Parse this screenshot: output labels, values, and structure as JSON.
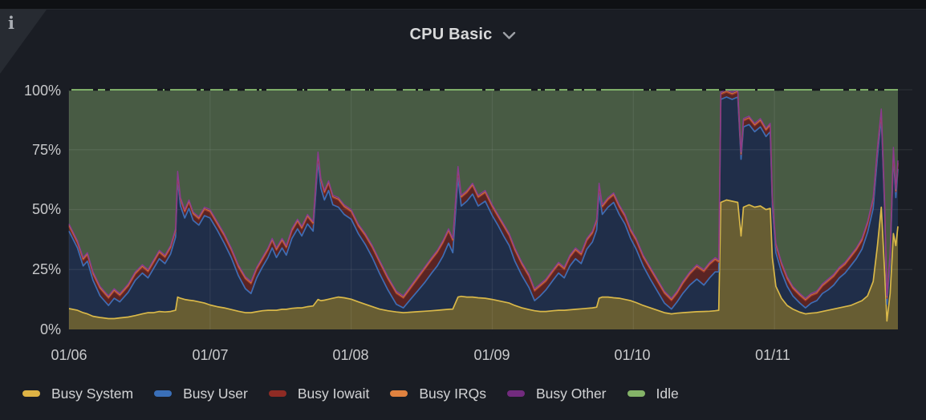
{
  "panel": {
    "title": "CPU Basic"
  },
  "icons": {
    "info_glyph": "i"
  },
  "y_axis": {
    "ticks": [
      "100%",
      "75%",
      "50%",
      "25%",
      "0%"
    ]
  },
  "x_axis": {
    "ticks": [
      "01/06",
      "01/07",
      "01/08",
      "01/09",
      "01/10",
      "01/11"
    ]
  },
  "legend": [
    {
      "label": "Busy System",
      "color": "#deb345"
    },
    {
      "label": "Busy User",
      "color": "#3a6fb8"
    },
    {
      "label": "Busy Iowait",
      "color": "#8f2b24"
    },
    {
      "label": "Busy IRQs",
      "color": "#e0823f"
    },
    {
      "label": "Busy Other",
      "color": "#722b7e"
    },
    {
      "label": "Idle",
      "color": "#84b368"
    }
  ],
  "chart_data": {
    "type": "area",
    "stacked": true,
    "title": "CPU Basic",
    "unit": "percent",
    "ylim": [
      0,
      100
    ],
    "xlim": [
      0,
      5.875
    ],
    "x_unit": "days since 01/06 00:00",
    "x_tick_positions": [
      0,
      1,
      2,
      3,
      4,
      5
    ],
    "grid": true,
    "legend_position": "bottom",
    "x": [
      0,
      0.06,
      0.1,
      0.13,
      0.17,
      0.22,
      0.28,
      0.32,
      0.36,
      0.42,
      0.47,
      0.52,
      0.56,
      0.6,
      0.64,
      0.68,
      0.72,
      0.755,
      0.77,
      0.79,
      0.82,
      0.85,
      0.88,
      0.92,
      0.96,
      1,
      1.05,
      1.1,
      1.15,
      1.2,
      1.25,
      1.29,
      1.33,
      1.37,
      1.41,
      1.44,
      1.47,
      1.51,
      1.54,
      1.58,
      1.62,
      1.65,
      1.69,
      1.73,
      1.765,
      1.785,
      1.81,
      1.84,
      1.87,
      1.91,
      1.95,
      2,
      2.05,
      2.1,
      2.15,
      2.2,
      2.26,
      2.32,
      2.37,
      2.42,
      2.47,
      2.52,
      2.57,
      2.61,
      2.65,
      2.69,
      2.72,
      2.757,
      2.78,
      2.82,
      2.86,
      2.9,
      2.95,
      3,
      3.04,
      3.08,
      3.12,
      3.16,
      3.21,
      3.26,
      3.3,
      3.34,
      3.38,
      3.43,
      3.47,
      3.51,
      3.55,
      3.59,
      3.63,
      3.67,
      3.71,
      3.74,
      3.757,
      3.78,
      3.82,
      3.86,
      3.9,
      3.94,
      3.98,
      4.02,
      4.07,
      4.12,
      4.17,
      4.22,
      4.27,
      4.31,
      4.35,
      4.4,
      4.45,
      4.5,
      4.54,
      4.58,
      4.605,
      4.62,
      4.66,
      4.7,
      4.74,
      4.763,
      4.78,
      4.82,
      4.86,
      4.9,
      4.94,
      4.97,
      4.985,
      5.01,
      5.05,
      5.09,
      5.13,
      5.18,
      5.22,
      5.26,
      5.3,
      5.34,
      5.38,
      5.42,
      5.46,
      5.5,
      5.54,
      5.58,
      5.62,
      5.66,
      5.7,
      5.73,
      5.757,
      5.78,
      5.797,
      5.82,
      5.843,
      5.86,
      5.875
    ],
    "series": [
      {
        "name": "Busy System",
        "line": "#d9b849",
        "fill": "#675d33",
        "values": [
          8.7,
          8,
          7,
          6.5,
          5.5,
          5,
          4.5,
          4.5,
          4.8,
          5.2,
          5.8,
          6.5,
          7,
          7,
          7.5,
          7.3,
          7.5,
          8,
          13.5,
          13,
          12.5,
          12.2,
          12,
          11.5,
          11,
          10.2,
          9.5,
          9,
          8.3,
          7.6,
          7,
          7,
          7.4,
          7.8,
          8,
          8,
          8,
          8.4,
          8.4,
          8.8,
          9,
          9,
          9.5,
          9.8,
          12.5,
          12,
          12.2,
          12.6,
          13,
          13.5,
          13.2,
          12.6,
          11.5,
          10.5,
          9.5,
          8.5,
          7.8,
          7.3,
          7,
          7.2,
          7.4,
          7.6,
          7.8,
          8,
          8.2,
          8.4,
          8.5,
          13.5,
          13.8,
          13.5,
          13.5,
          13.2,
          13,
          12.5,
          12,
          11.5,
          11,
          10,
          9,
          8.3,
          7.8,
          7.5,
          7.5,
          7.8,
          8,
          8,
          8.2,
          8.4,
          8.6,
          8.8,
          9,
          9.3,
          13,
          13.5,
          13.5,
          13.2,
          13,
          12.5,
          12,
          11.2,
          10,
          9,
          8,
          7,
          6.5,
          6.8,
          7,
          7.2,
          7.4,
          7.5,
          7.6,
          7.8,
          8,
          53,
          54,
          53.5,
          53,
          39,
          51,
          52,
          51,
          51.5,
          50,
          50.5,
          30,
          18,
          13,
          10,
          8.5,
          7.2,
          6.5,
          6.8,
          7,
          7.5,
          8,
          8.5,
          9,
          9.5,
          10,
          11,
          12,
          14,
          20,
          35,
          51,
          25,
          3.5,
          15,
          40,
          35,
          43
        ]
      },
      {
        "name": "Busy User",
        "line": "#3e6db4",
        "fill": "#202e49",
        "values": [
          32.3,
          26,
          19.5,
          22,
          15,
          9,
          5.5,
          8.5,
          6.7,
          10.3,
          14.7,
          17,
          14.5,
          18.5,
          22,
          20.2,
          24,
          30.5,
          49,
          38.5,
          34,
          38.3,
          33.5,
          32,
          36.5,
          36.3,
          32,
          27,
          21.7,
          14.9,
          10,
          8,
          14.1,
          18.2,
          22,
          26,
          22,
          25.6,
          22.6,
          29.2,
          33,
          30,
          34.5,
          31.2,
          57.5,
          47,
          41.8,
          45.4,
          39,
          37.5,
          34.8,
          33.4,
          28.5,
          25,
          20.5,
          15,
          8.7,
          3.2,
          2,
          5.3,
          8.6,
          11.9,
          15.7,
          18.5,
          22.3,
          27.6,
          23.5,
          50,
          37.7,
          40,
          43,
          38.3,
          40.5,
          35,
          31.5,
          27.5,
          24,
          18.5,
          13.5,
          9.2,
          4.2,
          6.5,
          9,
          12.7,
          15.5,
          13.5,
          18.3,
          21.1,
          18.9,
          24.7,
          27.5,
          32.2,
          44,
          34.5,
          37.5,
          39.8,
          35,
          31.5,
          26,
          22.3,
          16.5,
          12,
          8,
          4,
          2,
          4.7,
          8,
          11.3,
          13.6,
          11,
          13.9,
          16.2,
          16,
          43,
          43,
          42.5,
          44,
          32,
          33.5,
          33.5,
          31.5,
          33,
          30.5,
          32,
          21.5,
          14,
          11,
          8,
          5.5,
          3.8,
          2.5,
          4.2,
          5,
          7.5,
          8.5,
          10,
          12.5,
          14,
          16.5,
          18.5,
          21.5,
          26.5,
          30.5,
          37,
          37.5,
          26.5,
          7,
          13.5,
          32.5,
          20,
          24
        ]
      },
      {
        "name": "Busy Iowait",
        "line": "#9e372c",
        "fill": "#5a2423",
        "values": [
          2,
          2,
          2.5,
          2.5,
          2.5,
          3,
          3,
          3,
          2.5,
          2.5,
          2.5,
          2.5,
          2.5,
          2.5,
          2.5,
          2.5,
          2.5,
          2.5,
          2.5,
          2.5,
          2.5,
          2.5,
          2.5,
          2.5,
          2.5,
          2.5,
          2.5,
          3,
          3,
          3.5,
          4,
          4,
          3.5,
          3,
          3,
          3,
          3,
          3,
          3,
          3,
          3,
          3,
          3,
          3,
          3,
          3,
          3,
          3,
          3,
          3,
          3,
          3,
          3,
          3.5,
          4,
          4.5,
          4.5,
          4.5,
          4,
          4.5,
          5,
          5.5,
          5.5,
          5.5,
          5.5,
          5,
          5,
          3.5,
          3.5,
          3.5,
          3.5,
          3.5,
          3.5,
          3.5,
          3.5,
          4,
          4,
          4.5,
          4.5,
          4.5,
          4,
          4,
          3.5,
          3.5,
          3.5,
          3.5,
          3.5,
          3.5,
          3.5,
          3.5,
          3.5,
          3.5,
          3,
          3,
          3,
          3,
          3,
          3,
          3,
          3.5,
          3.5,
          4,
          4,
          4,
          3.5,
          3.5,
          4,
          4.5,
          5,
          5.5,
          5.5,
          5,
          4,
          2,
          2,
          2,
          2,
          2,
          2.5,
          2.5,
          2.5,
          2.5,
          2.5,
          2.5,
          2.5,
          3,
          3,
          3,
          3,
          3,
          3,
          3,
          3,
          3,
          3.5,
          3.5,
          3.5,
          3.5,
          3.5,
          3.5,
          3.5,
          3.5,
          3.5,
          3,
          2.5,
          2.5,
          2.5,
          2.5,
          2.5,
          2.5,
          2.5
        ]
      },
      {
        "name": "Busy IRQs",
        "line": "#cf7b3d",
        "fill": "#6e462a",
        "constant": 0.4
      },
      {
        "name": "Busy Other",
        "line": "#8a3b91",
        "fill": "#4f2b56",
        "constant": 0.6
      },
      {
        "name": "Idle",
        "line": "#7fb069",
        "fill": "#485b44",
        "remainder": true
      }
    ]
  }
}
